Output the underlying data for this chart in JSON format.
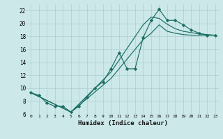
{
  "bg_color": "#cce8e8",
  "grid_color": "#aacfcf",
  "line_color": "#1a6e64",
  "xlabel": "Humidex (Indice chaleur)",
  "xlim_min": -0.5,
  "xlim_max": 23.4,
  "ylim_min": 6,
  "ylim_max": 23,
  "yticks": [
    6,
    8,
    10,
    12,
    14,
    16,
    18,
    20,
    22
  ],
  "xticks": [
    0,
    1,
    2,
    3,
    4,
    5,
    6,
    7,
    8,
    9,
    10,
    11,
    12,
    13,
    14,
    15,
    16,
    17,
    18,
    19,
    20,
    21,
    22,
    23
  ],
  "line1_x": [
    0,
    1,
    2,
    3,
    4,
    5,
    6,
    7,
    8,
    9,
    10,
    11,
    12,
    13,
    14,
    15,
    16,
    17,
    18,
    19,
    20,
    21,
    22,
    23
  ],
  "line1_y": [
    9.3,
    8.9,
    7.7,
    7.2,
    7.2,
    6.3,
    7.2,
    8.6,
    10.0,
    11.0,
    13.0,
    15.5,
    13.0,
    13.0,
    17.8,
    20.5,
    22.2,
    20.5,
    20.5,
    19.8,
    19.0,
    18.5,
    18.2,
    18.2
  ],
  "line2_x": [
    0,
    5,
    10,
    14,
    15,
    16,
    17,
    18,
    19,
    20,
    21,
    22,
    23
  ],
  "line2_y": [
    9.3,
    6.3,
    12.5,
    19.8,
    21.0,
    20.8,
    19.9,
    19.2,
    18.8,
    18.6,
    18.4,
    18.3,
    18.2
  ],
  "line3_x": [
    0,
    5,
    10,
    14,
    15,
    16,
    17,
    18,
    19,
    20,
    21,
    22,
    23
  ],
  "line3_y": [
    9.3,
    6.3,
    11.5,
    17.5,
    18.5,
    19.8,
    18.8,
    18.5,
    18.3,
    18.2,
    18.2,
    18.2,
    18.2
  ]
}
